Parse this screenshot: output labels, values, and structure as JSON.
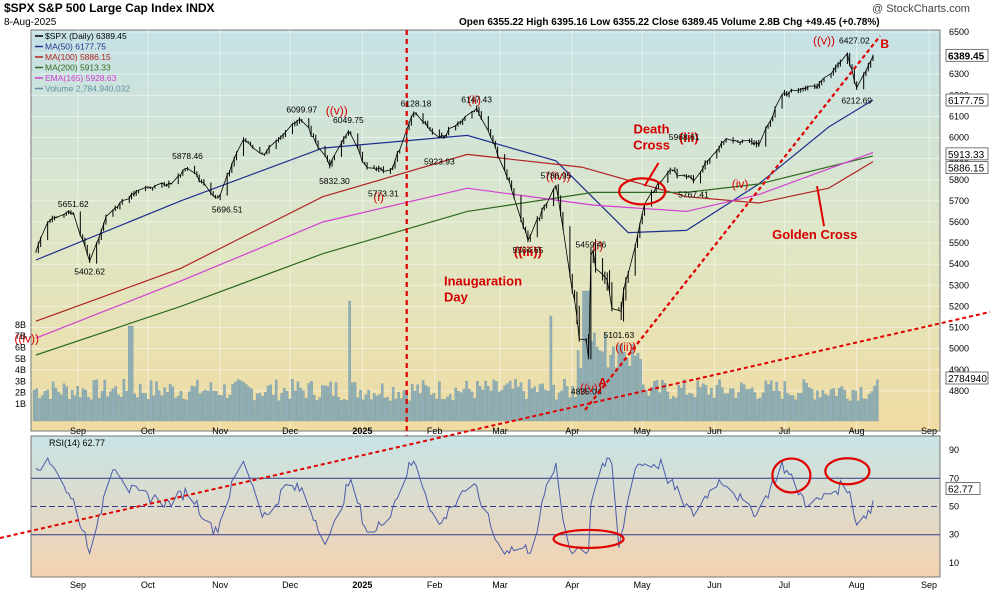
{
  "header": {
    "title": "$SPX S&P 500 Large Cap Index INDX",
    "date": "8-Aug-2025",
    "ohlc": "Open 6355.22  High 6395.16  Low 6355.22  Close 6389.45  Volume 2.8B  Chg +49.45 (+0.78%)",
    "watermark": "@ StockCharts.com"
  },
  "legend": [
    {
      "text": "$SPX (Daily) 6389.45",
      "color": "#000000"
    },
    {
      "text": "MA(50) 6177.75",
      "color": "#1f2f8f"
    },
    {
      "text": "MA(100) 5886.15",
      "color": "#b22222"
    },
    {
      "text": "MA(200) 5913.33",
      "color": "#2f6b1f"
    },
    {
      "text": "EMA(165) 5928.63",
      "color": "#d23fd2"
    },
    {
      "text": "Volume 2,784,940,032",
      "color": "#5f8fa3"
    }
  ],
  "rsi_legend": "RSI(14) 62.77",
  "chart_data": [
    {
      "type": "line",
      "title": "$SPX S&P 500 Large Cap Index INDX",
      "ylim": [
        4700,
        6500
      ],
      "yticks": [
        4800,
        4900,
        5000,
        5100,
        5200,
        5300,
        5400,
        5500,
        5600,
        5700,
        5800,
        5900,
        6000,
        6100,
        6200,
        6300,
        6400,
        6500
      ],
      "volume_ticks": [
        "1B",
        "2B",
        "3B",
        "4B",
        "5B",
        "6B",
        "7B",
        "8B"
      ],
      "x_labels": [
        "Sep",
        "Oct",
        "Nov",
        "Dec",
        "2025",
        "Feb",
        "Mar",
        "Apr",
        "May",
        "Jun",
        "Jul",
        "Aug",
        "Sep"
      ],
      "price_path": [
        [
          "2024-08-14",
          5455
        ],
        [
          "2024-08-19",
          5610
        ],
        [
          "2024-08-23",
          5634
        ],
        [
          "2024-08-30",
          5648
        ],
        [
          "2024-09-06",
          5408
        ],
        [
          "2024-09-13",
          5626
        ],
        [
          "2024-09-20",
          5702
        ],
        [
          "2024-09-30",
          5762
        ],
        [
          "2024-10-10",
          5780
        ],
        [
          "2024-10-18",
          5864
        ],
        [
          "2024-10-31",
          5705
        ],
        [
          "2024-11-11",
          6001
        ],
        [
          "2024-11-19",
          5917
        ],
        [
          "2024-11-29",
          6032
        ],
        [
          "2024-12-06",
          6090
        ],
        [
          "2024-12-18",
          5872
        ],
        [
          "2024-12-26",
          6037
        ],
        [
          "2025-01-02",
          5868
        ],
        [
          "2025-01-13",
          5836
        ],
        [
          "2025-01-23",
          6118
        ],
        [
          "2025-02-03",
          5994
        ],
        [
          "2025-02-19",
          6144
        ],
        [
          "2025-03-03",
          5849
        ],
        [
          "2025-03-13",
          5521
        ],
        [
          "2025-03-25",
          5776
        ],
        [
          "2025-04-04",
          5074
        ],
        [
          "2025-04-08",
          4982
        ],
        [
          "2025-04-09",
          5456
        ],
        [
          "2025-04-21",
          5158
        ],
        [
          "2025-05-02",
          5686
        ],
        [
          "2025-05-12",
          5844
        ],
        [
          "2025-05-23",
          5802
        ],
        [
          "2025-06-06",
          6000
        ],
        [
          "2025-06-20",
          5967
        ],
        [
          "2025-06-30",
          6205
        ],
        [
          "2025-07-15",
          6244
        ],
        [
          "2025-07-28",
          6389
        ],
        [
          "2025-08-01",
          6238
        ],
        [
          "2025-08-08",
          6389
        ]
      ],
      "series": [
        {
          "name": "MA(50)",
          "last": 6177.75,
          "color": "#1f2f8f",
          "path": [
            [
              "2024-08-14",
              5420
            ],
            [
              "2024-10-15",
              5700
            ],
            [
              "2024-12-15",
              5950
            ],
            [
              "2025-02-15",
              6010
            ],
            [
              "2025-03-25",
              5890
            ],
            [
              "2025-04-25",
              5550
            ],
            [
              "2025-05-20",
              5560
            ],
            [
              "2025-06-20",
              5780
            ],
            [
              "2025-07-20",
              6050
            ],
            [
              "2025-08-08",
              6177.75
            ]
          ]
        },
        {
          "name": "MA(100)",
          "last": 5886.15,
          "color": "#b22222",
          "path": [
            [
              "2024-08-14",
              5130
            ],
            [
              "2024-10-15",
              5380
            ],
            [
              "2024-12-15",
              5720
            ],
            [
              "2025-02-15",
              5920
            ],
            [
              "2025-04-05",
              5860
            ],
            [
              "2025-05-20",
              5720
            ],
            [
              "2025-06-20",
              5690
            ],
            [
              "2025-07-20",
              5760
            ],
            [
              "2025-08-08",
              5886.15
            ]
          ]
        },
        {
          "name": "MA(200)",
          "last": 5913.33,
          "color": "#2f6b1f",
          "path": [
            [
              "2024-08-14",
              4970
            ],
            [
              "2024-10-15",
              5200
            ],
            [
              "2024-12-15",
              5450
            ],
            [
              "2025-02-15",
              5650
            ],
            [
              "2025-04-10",
              5740
            ],
            [
              "2025-05-20",
              5740
            ],
            [
              "2025-06-20",
              5780
            ],
            [
              "2025-08-08",
              5913.33
            ]
          ]
        },
        {
          "name": "EMA(165)",
          "last": 5928.63,
          "color": "#d23fd2",
          "path": [
            [
              "2024-08-14",
              5050
            ],
            [
              "2024-10-15",
              5320
            ],
            [
              "2024-12-15",
              5600
            ],
            [
              "2025-02-15",
              5760
            ],
            [
              "2025-04-10",
              5680
            ],
            [
              "2025-05-20",
              5650
            ],
            [
              "2025-06-20",
              5730
            ],
            [
              "2025-08-08",
              5928.63
            ]
          ]
        }
      ],
      "axis_value_boxes": [
        {
          "text": "6389.45",
          "value": 6389.45
        },
        {
          "text": "6177.75",
          "value": 6177.75
        },
        {
          "text": "5913.33",
          "value": 5913.33
        },
        {
          "text": "5886.15",
          "value": 5886.15
        },
        {
          "text": "2784940",
          "value": 2784940
        }
      ],
      "price_labels": [
        {
          "text": "5651.62",
          "date": "2024-08-30",
          "value": 5651.62,
          "pos": "above"
        },
        {
          "text": "5402.62",
          "date": "2024-09-06",
          "value": 5402.62,
          "pos": "below"
        },
        {
          "text": "5878.46",
          "date": "2024-10-18",
          "value": 5878.46,
          "pos": "above"
        },
        {
          "text": "5696.51",
          "date": "2024-11-04",
          "value": 5696.51,
          "pos": "below"
        },
        {
          "text": "6099.97",
          "date": "2024-12-06",
          "value": 6099.97,
          "pos": "above"
        },
        {
          "text": "6049.75",
          "date": "2024-12-26",
          "value": 6049.75,
          "pos": "above"
        },
        {
          "text": "5832.30",
          "date": "2024-12-20",
          "value": 5832.3,
          "pos": "below"
        },
        {
          "text": "5773.31",
          "date": "2025-01-10",
          "value": 5773.31,
          "pos": "below"
        },
        {
          "text": "6128.18",
          "date": "2025-01-24",
          "value": 6128.18,
          "pos": "above"
        },
        {
          "text": "5923.93",
          "date": "2025-02-03",
          "value": 5923.93,
          "pos": "below"
        },
        {
          "text": "6147.43",
          "date": "2025-02-19",
          "value": 6147.43,
          "pos": "above"
        },
        {
          "text": "5786.95",
          "date": "2025-03-25",
          "value": 5786.95,
          "pos": "above"
        },
        {
          "text": "5504.65",
          "date": "2025-03-13",
          "value": 5504.65,
          "pos": "below"
        },
        {
          "text": "5459.46",
          "date": "2025-04-09",
          "value": 5459.46,
          "pos": "above"
        },
        {
          "text": "5101.63",
          "date": "2025-04-21",
          "value": 5101.63,
          "pos": "below"
        },
        {
          "text": "4835.04",
          "date": "2025-04-07",
          "value": 4835.04,
          "pos": "below"
        },
        {
          "text": "5968.61",
          "date": "2025-05-19",
          "value": 5968.61,
          "pos": "above"
        },
        {
          "text": "5767.41",
          "date": "2025-05-23",
          "value": 5767.41,
          "pos": "below"
        },
        {
          "text": "6427.02",
          "date": "2025-07-31",
          "value": 6427.02,
          "pos": "above"
        },
        {
          "text": "6212.69",
          "date": "2025-08-01",
          "value": 6212.69,
          "pos": "below"
        }
      ],
      "annotations": [
        {
          "text": "((iv))",
          "date": "2024-08-10",
          "value": 5030
        },
        {
          "text": "((v))",
          "date": "2024-12-21",
          "value": 6110
        },
        {
          "text": "(i)",
          "date": "2025-01-08",
          "value": 5700
        },
        {
          "text": "(ii)",
          "date": "2025-02-18",
          "value": 6160
        },
        {
          "text": "((iv))",
          "date": "2025-03-26",
          "value": 5800
        },
        {
          "text": "((iii))",
          "date": "2025-03-13",
          "value": 5440
        },
        {
          "text": "(i)",
          "date": "2025-04-12",
          "value": 5470
        },
        {
          "text": "((ii))",
          "date": "2025-04-24",
          "value": 4990
        },
        {
          "text": "((v))",
          "date": "2025-04-09",
          "value": 4795
        },
        {
          "text": "A",
          "date": "2025-04-14",
          "value": 4820
        },
        {
          "text": "(iii)",
          "date": "2025-05-21",
          "value": 5980
        },
        {
          "text": "(iv)",
          "date": "2025-06-12",
          "value": 5760
        },
        {
          "text": "((v))",
          "date": "2025-07-18",
          "value": 6440
        },
        {
          "text": "B",
          "date": "2025-08-13",
          "value": 6425
        },
        {
          "text": "Death\nCross",
          "date": "2025-05-05",
          "value": 6020
        },
        {
          "text": "Golden Cross",
          "date": "2025-07-14",
          "value": 5520
        },
        {
          "text": "Inaugaration\nDay",
          "date": "2025-02-05",
          "value": 5300
        }
      ],
      "event_line": {
        "date": "2025-01-20"
      }
    },
    {
      "type": "line",
      "title": "RSI(14) 62.77",
      "ylim": [
        0,
        100
      ],
      "yticks": [
        10,
        30,
        50,
        70,
        90
      ],
      "reference_lines": [
        70,
        50,
        30
      ],
      "last": 62.77,
      "x_labels": [
        "Sep",
        "Oct",
        "Nov",
        "Dec",
        "2025",
        "Feb",
        "Mar",
        "Apr",
        "May",
        "Jun",
        "Jul",
        "Aug",
        "Sep"
      ]
    }
  ]
}
